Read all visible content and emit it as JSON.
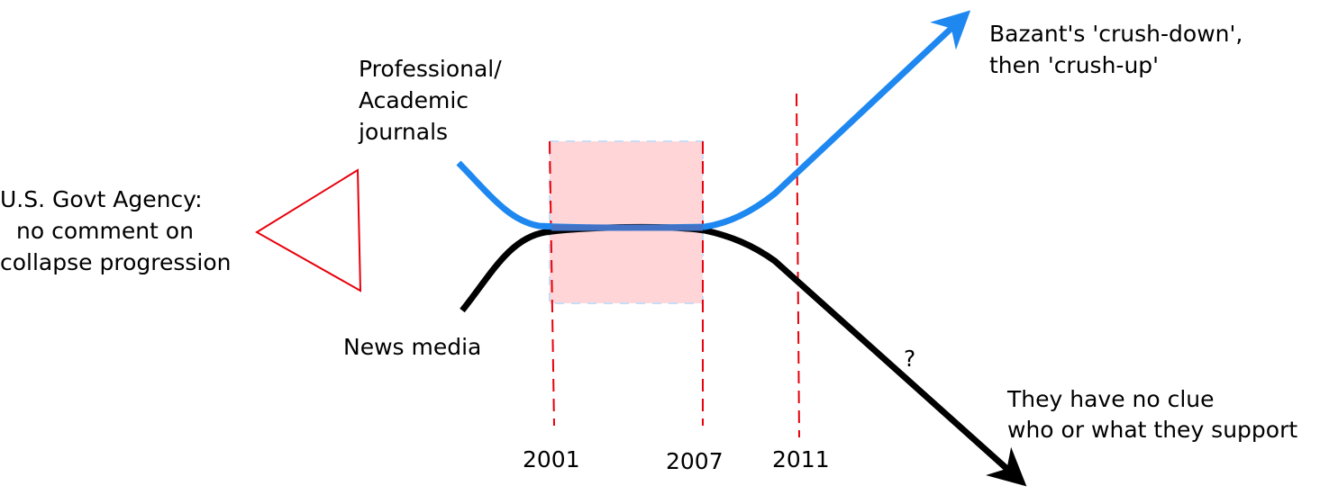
{
  "labels": {
    "journals": [
      "Professional/",
      "Academic",
      "journals"
    ],
    "govt": [
      "U.S. Govt Agency:",
      "no comment on",
      "collapse progression"
    ],
    "news": "News media",
    "bazant": [
      "Bazant's 'crush-down',",
      "then 'crush-up'"
    ],
    "question": "?",
    "no_clue": [
      "They have no clue",
      "who or what they support"
    ]
  },
  "years": [
    "2001",
    "2007",
    "2011"
  ],
  "colors": {
    "journals_line": "#1e88f0",
    "news_line": "#000000",
    "highlight_box": "#ffd5d8",
    "dashed_lines": "#e8000b",
    "triangle": "#e8000b"
  }
}
